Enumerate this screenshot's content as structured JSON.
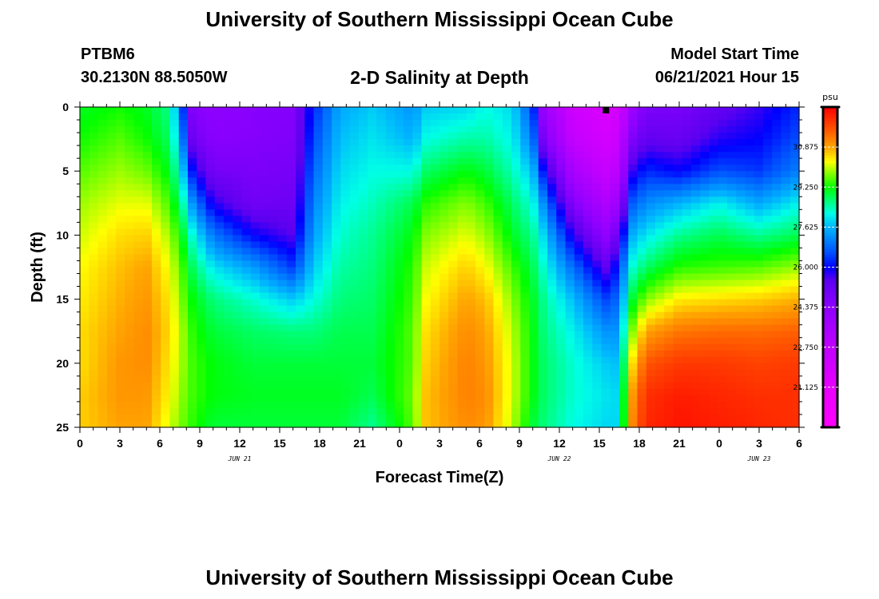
{
  "page": {
    "top_title": "University of Southern Mississippi Ocean Cube",
    "bottom_title": "University of Southern Mississippi Ocean Cube",
    "station_id": "PTBM6",
    "station_coords": "30.2130N  88.5050W",
    "chart_title": "2-D Salinity at Depth",
    "start_label": "Model Start Time",
    "start_value": "06/21/2021 Hour 15"
  },
  "chart_data": {
    "type": "heatmap",
    "title": "2-D Salinity at Depth",
    "xlabel": "Forecast Time(Z)",
    "ylabel": "Depth (ft)",
    "units": "psu",
    "x_range_hours": [
      0,
      54
    ],
    "y_range_ft": [
      0,
      25
    ],
    "x_tick_labels": [
      "0",
      "3",
      "6",
      "9",
      "12",
      "15",
      "18",
      "21",
      "0",
      "3",
      "6",
      "9",
      "12",
      "15",
      "18",
      "21",
      "0",
      "3",
      "6"
    ],
    "y_tick_labels": [
      "0",
      "5",
      "10",
      "15",
      "20",
      "25"
    ],
    "date_labels": [
      {
        "text": "JUN 21",
        "hour": 12
      },
      {
        "text": "JUN 22",
        "hour": 36
      },
      {
        "text": "JUN 23",
        "hour": 51
      }
    ],
    "marker_hour": 39.5,
    "colorbar": {
      "title": "psu",
      "min": 19.5,
      "max": 32.5,
      "labels": [
        "30.875",
        "29.250",
        "27.625",
        "26.000",
        "24.375",
        "22.750",
        "21.125"
      ],
      "label_values": [
        30.875,
        29.25,
        27.625,
        26.0,
        24.375,
        22.75,
        21.125
      ],
      "colors": [
        {
          "v": 19.5,
          "c": "#ff00ff"
        },
        {
          "v": 21.125,
          "c": "#e800ff"
        },
        {
          "v": 22.75,
          "c": "#c000ff"
        },
        {
          "v": 24.375,
          "c": "#8f00ff"
        },
        {
          "v": 25.5,
          "c": "#5a00f0"
        },
        {
          "v": 26.0,
          "c": "#0000ff"
        },
        {
          "v": 26.6,
          "c": "#0050ff"
        },
        {
          "v": 27.625,
          "c": "#00b4ff"
        },
        {
          "v": 28.2,
          "c": "#00ffe6"
        },
        {
          "v": 28.7,
          "c": "#00ff7a"
        },
        {
          "v": 29.25,
          "c": "#00ff00"
        },
        {
          "v": 29.9,
          "c": "#9aff00"
        },
        {
          "v": 30.3,
          "c": "#ffff00"
        },
        {
          "v": 30.875,
          "c": "#ffa500"
        },
        {
          "v": 31.6,
          "c": "#ff5500"
        },
        {
          "v": 32.5,
          "c": "#ff0000"
        }
      ]
    },
    "salinity_profiles": [
      {
        "hour": 0,
        "values": [
          29.1,
          29.3,
          29.6,
          29.9,
          30.1,
          30.3,
          30.4,
          30.5,
          30.5,
          30.6,
          30.6
        ]
      },
      {
        "hour": 3,
        "values": [
          29.3,
          29.6,
          29.9,
          30.2,
          30.5,
          30.7,
          30.8,
          30.9,
          31.0,
          31.0,
          30.9
        ]
      },
      {
        "hour": 5,
        "values": [
          29.1,
          29.3,
          29.7,
          30.2,
          30.6,
          30.9,
          31.0,
          31.1,
          31.1,
          31.0,
          30.9
        ]
      },
      {
        "hour": 6.8,
        "values": [
          28.6,
          28.8,
          29.1,
          29.5,
          29.9,
          30.2,
          30.4,
          30.5,
          30.4,
          30.3,
          30.1
        ]
      },
      {
        "hour": 7.7,
        "values": [
          26.5,
          27.0,
          27.8,
          28.5,
          29.1,
          29.5,
          29.7,
          29.9,
          29.9,
          29.8,
          29.7
        ]
      },
      {
        "hour": 8.5,
        "values": [
          24.5,
          25.0,
          26.0,
          27.2,
          28.2,
          28.8,
          29.2,
          29.4,
          29.5,
          29.5,
          29.4
        ]
      },
      {
        "hour": 10,
        "values": [
          24.4,
          24.5,
          24.9,
          25.8,
          27.0,
          28.0,
          28.7,
          29.0,
          29.2,
          29.2,
          29.0
        ]
      },
      {
        "hour": 13,
        "values": [
          24.5,
          24.6,
          24.8,
          25.0,
          26.0,
          27.4,
          28.3,
          28.8,
          29.0,
          29.1,
          29.0
        ]
      },
      {
        "hour": 16,
        "values": [
          24.6,
          24.7,
          24.9,
          25.1,
          25.5,
          26.4,
          27.8,
          28.7,
          29.0,
          29.1,
          29.0
        ]
      },
      {
        "hour": 17.5,
        "values": [
          26.2,
          26.5,
          26.8,
          27.1,
          27.4,
          27.8,
          28.2,
          28.7,
          29.0,
          29.1,
          29.0
        ]
      },
      {
        "hour": 19.5,
        "values": [
          27.5,
          27.7,
          27.9,
          28.1,
          28.3,
          28.5,
          28.7,
          28.9,
          29.0,
          29.1,
          29.0
        ]
      },
      {
        "hour": 22,
        "values": [
          27.8,
          28.0,
          28.2,
          28.4,
          28.6,
          28.7,
          28.8,
          28.9,
          29.0,
          28.9,
          28.6
        ]
      },
      {
        "hour": 25,
        "values": [
          27.3,
          27.6,
          28.2,
          28.9,
          29.2,
          29.4,
          29.5,
          29.6,
          29.6,
          29.7,
          29.6
        ]
      },
      {
        "hour": 26,
        "values": [
          27.8,
          28.2,
          28.8,
          29.4,
          29.8,
          30.1,
          30.3,
          30.5,
          30.6,
          30.7,
          30.7
        ]
      },
      {
        "hour": 29,
        "values": [
          27.9,
          28.5,
          29.2,
          29.8,
          30.2,
          30.6,
          30.9,
          31.1,
          31.2,
          31.2,
          31.1
        ]
      },
      {
        "hour": 30.5,
        "values": [
          28.2,
          28.5,
          29.0,
          29.5,
          29.9,
          30.3,
          30.7,
          30.9,
          31.0,
          31.1,
          31.0
        ]
      },
      {
        "hour": 32.5,
        "values": [
          27.9,
          28.1,
          28.4,
          28.8,
          29.1,
          29.5,
          29.8,
          30.0,
          30.1,
          30.1,
          30.0
        ]
      },
      {
        "hour": 34,
        "values": [
          26.5,
          27.0,
          27.7,
          28.2,
          28.6,
          28.9,
          29.1,
          29.2,
          29.2,
          29.2,
          29.0
        ]
      },
      {
        "hour": 34.8,
        "values": [
          24.0,
          24.8,
          26.1,
          27.2,
          27.9,
          28.3,
          28.6,
          28.7,
          28.8,
          28.8,
          28.7
        ]
      },
      {
        "hour": 37,
        "values": [
          22.2,
          22.6,
          23.5,
          24.6,
          25.8,
          26.9,
          27.7,
          28.1,
          28.3,
          28.3,
          28.2
        ]
      },
      {
        "hour": 39.5,
        "values": [
          21.7,
          22.0,
          22.5,
          23.3,
          24.3,
          25.4,
          26.5,
          27.3,
          27.8,
          28.0,
          27.9
        ]
      },
      {
        "hour": 40.5,
        "values": [
          22.0,
          22.4,
          23.0,
          24.0,
          25.2,
          26.3,
          26.9,
          27.3,
          27.7,
          27.9,
          27.9
        ]
      },
      {
        "hour": 41.3,
        "values": [
          23.8,
          24.6,
          25.6,
          26.6,
          27.5,
          28.2,
          28.9,
          29.6,
          30.3,
          30.8,
          31.0
        ]
      },
      {
        "hour": 42.5,
        "values": [
          24.8,
          25.3,
          26.3,
          27.2,
          28.0,
          28.8,
          29.8,
          30.9,
          31.6,
          32.0,
          32.1
        ]
      },
      {
        "hour": 45,
        "values": [
          24.8,
          25.2,
          26.0,
          27.6,
          28.6,
          29.4,
          30.4,
          31.3,
          31.9,
          32.2,
          32.3
        ]
      },
      {
        "hour": 48,
        "values": [
          25.3,
          25.8,
          26.6,
          28.1,
          28.9,
          29.5,
          30.5,
          31.4,
          31.9,
          32.1,
          32.2
        ]
      },
      {
        "hour": 51,
        "values": [
          25.7,
          26.0,
          26.4,
          27.5,
          28.6,
          29.6,
          30.6,
          31.4,
          31.8,
          32.0,
          32.1
        ]
      },
      {
        "hour": 54,
        "values": [
          26.3,
          26.6,
          27.1,
          28.1,
          28.9,
          29.9,
          30.8,
          31.5,
          31.9,
          32.0,
          32.0
        ]
      }
    ]
  },
  "axes": {
    "xlabel": "Forecast Time(Z)",
    "ylabel": "Depth (ft)",
    "colorbar_title": "psu"
  }
}
